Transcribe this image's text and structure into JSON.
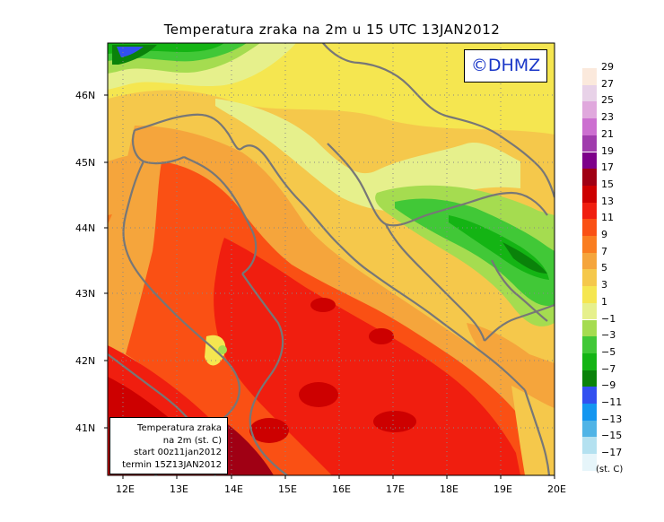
{
  "title": "Temperatura zraka na 2m u 15 UTC 13JAN2012",
  "copyright": "©DHMZ",
  "info_box": {
    "lines": [
      "Temperatura zraka",
      "na 2m (st. C)",
      "start 00z11jan2012",
      "termin 15Z13JAN2012"
    ]
  },
  "axes": {
    "latitude_labels": [
      "46N",
      "45N",
      "44N",
      "43N",
      "42N",
      "41N"
    ],
    "longitude_labels": [
      "12E",
      "13E",
      "14E",
      "15E",
      "16E",
      "17E",
      "18E",
      "19E",
      "20E"
    ]
  },
  "legend": {
    "unit": "(st. C)",
    "labels": [
      "29",
      "27",
      "25",
      "23",
      "21",
      "19",
      "17",
      "15",
      "13",
      "11",
      "9",
      "7",
      "5",
      "3",
      "1",
      "−1",
      "−3",
      "−5",
      "−7",
      "−9",
      "−11",
      "−13",
      "−15",
      "−17"
    ],
    "colors": [
      "#fbe9dc",
      "#e8d2e8",
      "#e0a8dd",
      "#cc6fd0",
      "#a03cad",
      "#7d008a",
      "#a00014",
      "#cd0000",
      "#f01e0f",
      "#fa5014",
      "#fa7d20",
      "#f5a53c",
      "#f5c84b",
      "#f5e650",
      "#e6f08c",
      "#a5dc50",
      "#41c837",
      "#14b414",
      "#0a820a",
      "#3250f0",
      "#1496f0",
      "#50b4e6",
      "#b4e1f0",
      "#e6f5fa"
    ]
  }
}
